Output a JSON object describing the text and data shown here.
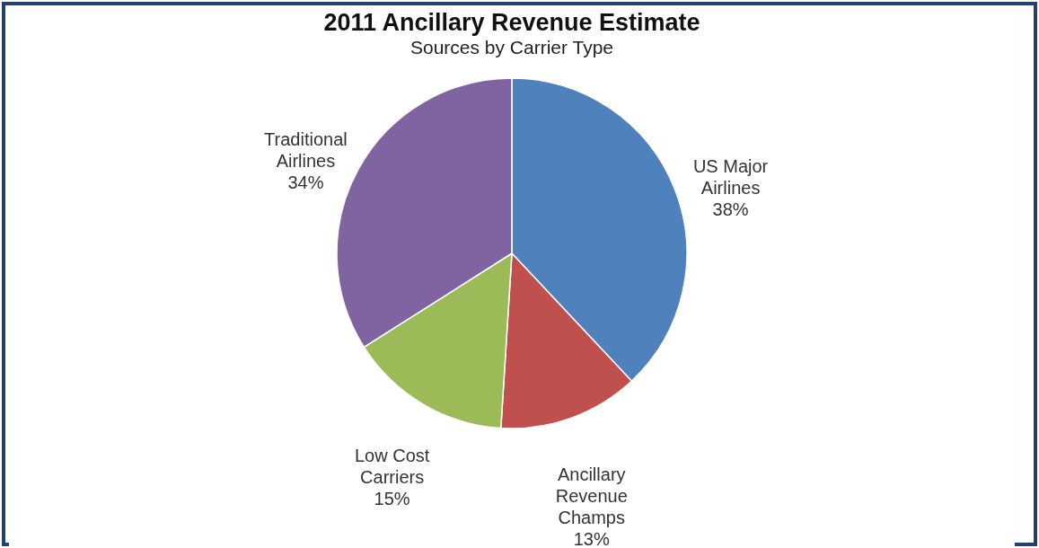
{
  "chart_data": {
    "type": "pie",
    "title": "2011 Ancillary Revenue Estimate",
    "subtitle": "Sources by Carrier Type",
    "categories": [
      "US Major Airlines",
      "Ancillary Revenue Champs",
      "Low Cost Carriers",
      "Traditional Airlines"
    ],
    "values": [
      38,
      13,
      15,
      34
    ],
    "colors": [
      "#4f81bd",
      "#c0504d",
      "#9bbb59",
      "#8064a2"
    ],
    "value_labels": [
      "38%",
      "13%",
      "15%",
      "34%"
    ]
  }
}
